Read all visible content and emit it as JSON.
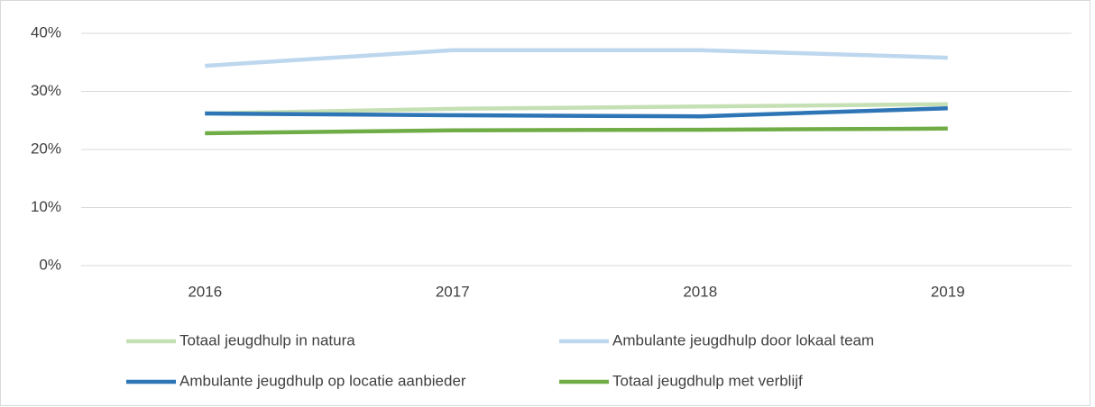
{
  "chart_data": {
    "type": "line",
    "categories": [
      "2016",
      "2017",
      "2018",
      "2019"
    ],
    "series": [
      {
        "name": "Totaal jeugdhulp in natura",
        "color": "#c5e0b4",
        "values": [
          26.2,
          27.0,
          27.4,
          27.8
        ]
      },
      {
        "name": "Ambulante jeugdhulp door lokaal team",
        "color": "#bdd7ee",
        "values": [
          34.4,
          37.1,
          37.1,
          35.8
        ]
      },
      {
        "name": "Ambulante jeugdhulp op locatie aanbieder",
        "color": "#2e75b6",
        "values": [
          26.2,
          25.9,
          25.7,
          27.1
        ]
      },
      {
        "name": "Totaal jeugdhulp met verblijf",
        "color": "#70ad47",
        "values": [
          22.8,
          23.3,
          23.4,
          23.6
        ]
      }
    ],
    "ylim": [
      0,
      40
    ],
    "yticks": [
      {
        "value": 0,
        "label": "0%"
      },
      {
        "value": 10,
        "label": "10%"
      },
      {
        "value": 20,
        "label": "20%"
      },
      {
        "value": 30,
        "label": "30%"
      },
      {
        "value": 40,
        "label": "40%"
      }
    ],
    "grid": true,
    "legend": "bottom"
  }
}
